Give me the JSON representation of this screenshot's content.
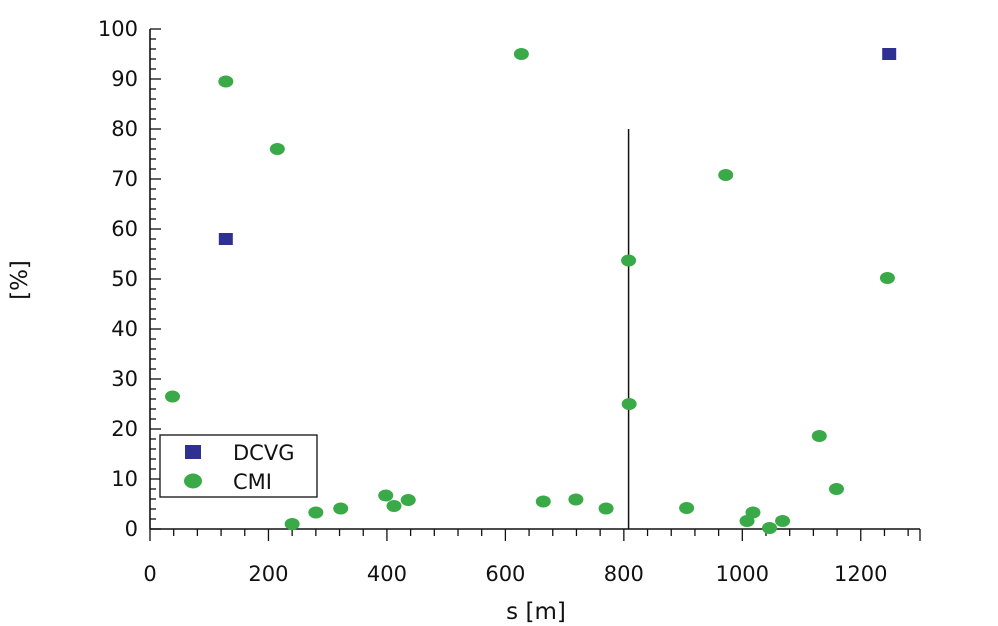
{
  "chart_data": {
    "type": "scatter",
    "title": "",
    "xlabel": "s [m]",
    "ylabel": "[%]",
    "xlim": [
      0,
      1300
    ],
    "ylim": [
      0,
      100
    ],
    "x_ticks": [
      "0",
      "200",
      "400",
      "600",
      "800",
      "1000",
      "1200"
    ],
    "y_ticks": [
      "0",
      "10",
      "20",
      "30",
      "40",
      "50",
      "60",
      "70",
      "80",
      "90",
      "100"
    ],
    "grid": false,
    "legend_position": "bottom-left",
    "vertical_line": {
      "x": 808,
      "y_from": 0,
      "y_to": 80
    },
    "series": [
      {
        "name": "DCVG",
        "marker": "square",
        "color": "#2e3192",
        "points": [
          [
            128,
            58
          ],
          [
            1248,
            95
          ]
        ]
      },
      {
        "name": "CMI",
        "marker": "circle",
        "color": "#3aaa48",
        "points": [
          [
            38,
            26.5
          ],
          [
            128,
            89.5
          ],
          [
            215,
            76
          ],
          [
            240,
            1
          ],
          [
            280,
            3.3
          ],
          [
            322,
            4.1
          ],
          [
            398,
            6.7
          ],
          [
            412,
            4.6
          ],
          [
            436,
            5.8
          ],
          [
            627,
            95
          ],
          [
            664,
            5.5
          ],
          [
            719,
            5.9
          ],
          [
            770,
            4.1
          ],
          [
            808,
            53.7
          ],
          [
            809,
            25
          ],
          [
            906,
            4.2
          ],
          [
            972,
            70.8
          ],
          [
            1008,
            1.6
          ],
          [
            1018,
            3.3
          ],
          [
            1046,
            0.2
          ],
          [
            1068,
            1.6
          ],
          [
            1130,
            18.6
          ],
          [
            1159,
            8
          ],
          [
            1245,
            50.2
          ]
        ]
      }
    ]
  }
}
